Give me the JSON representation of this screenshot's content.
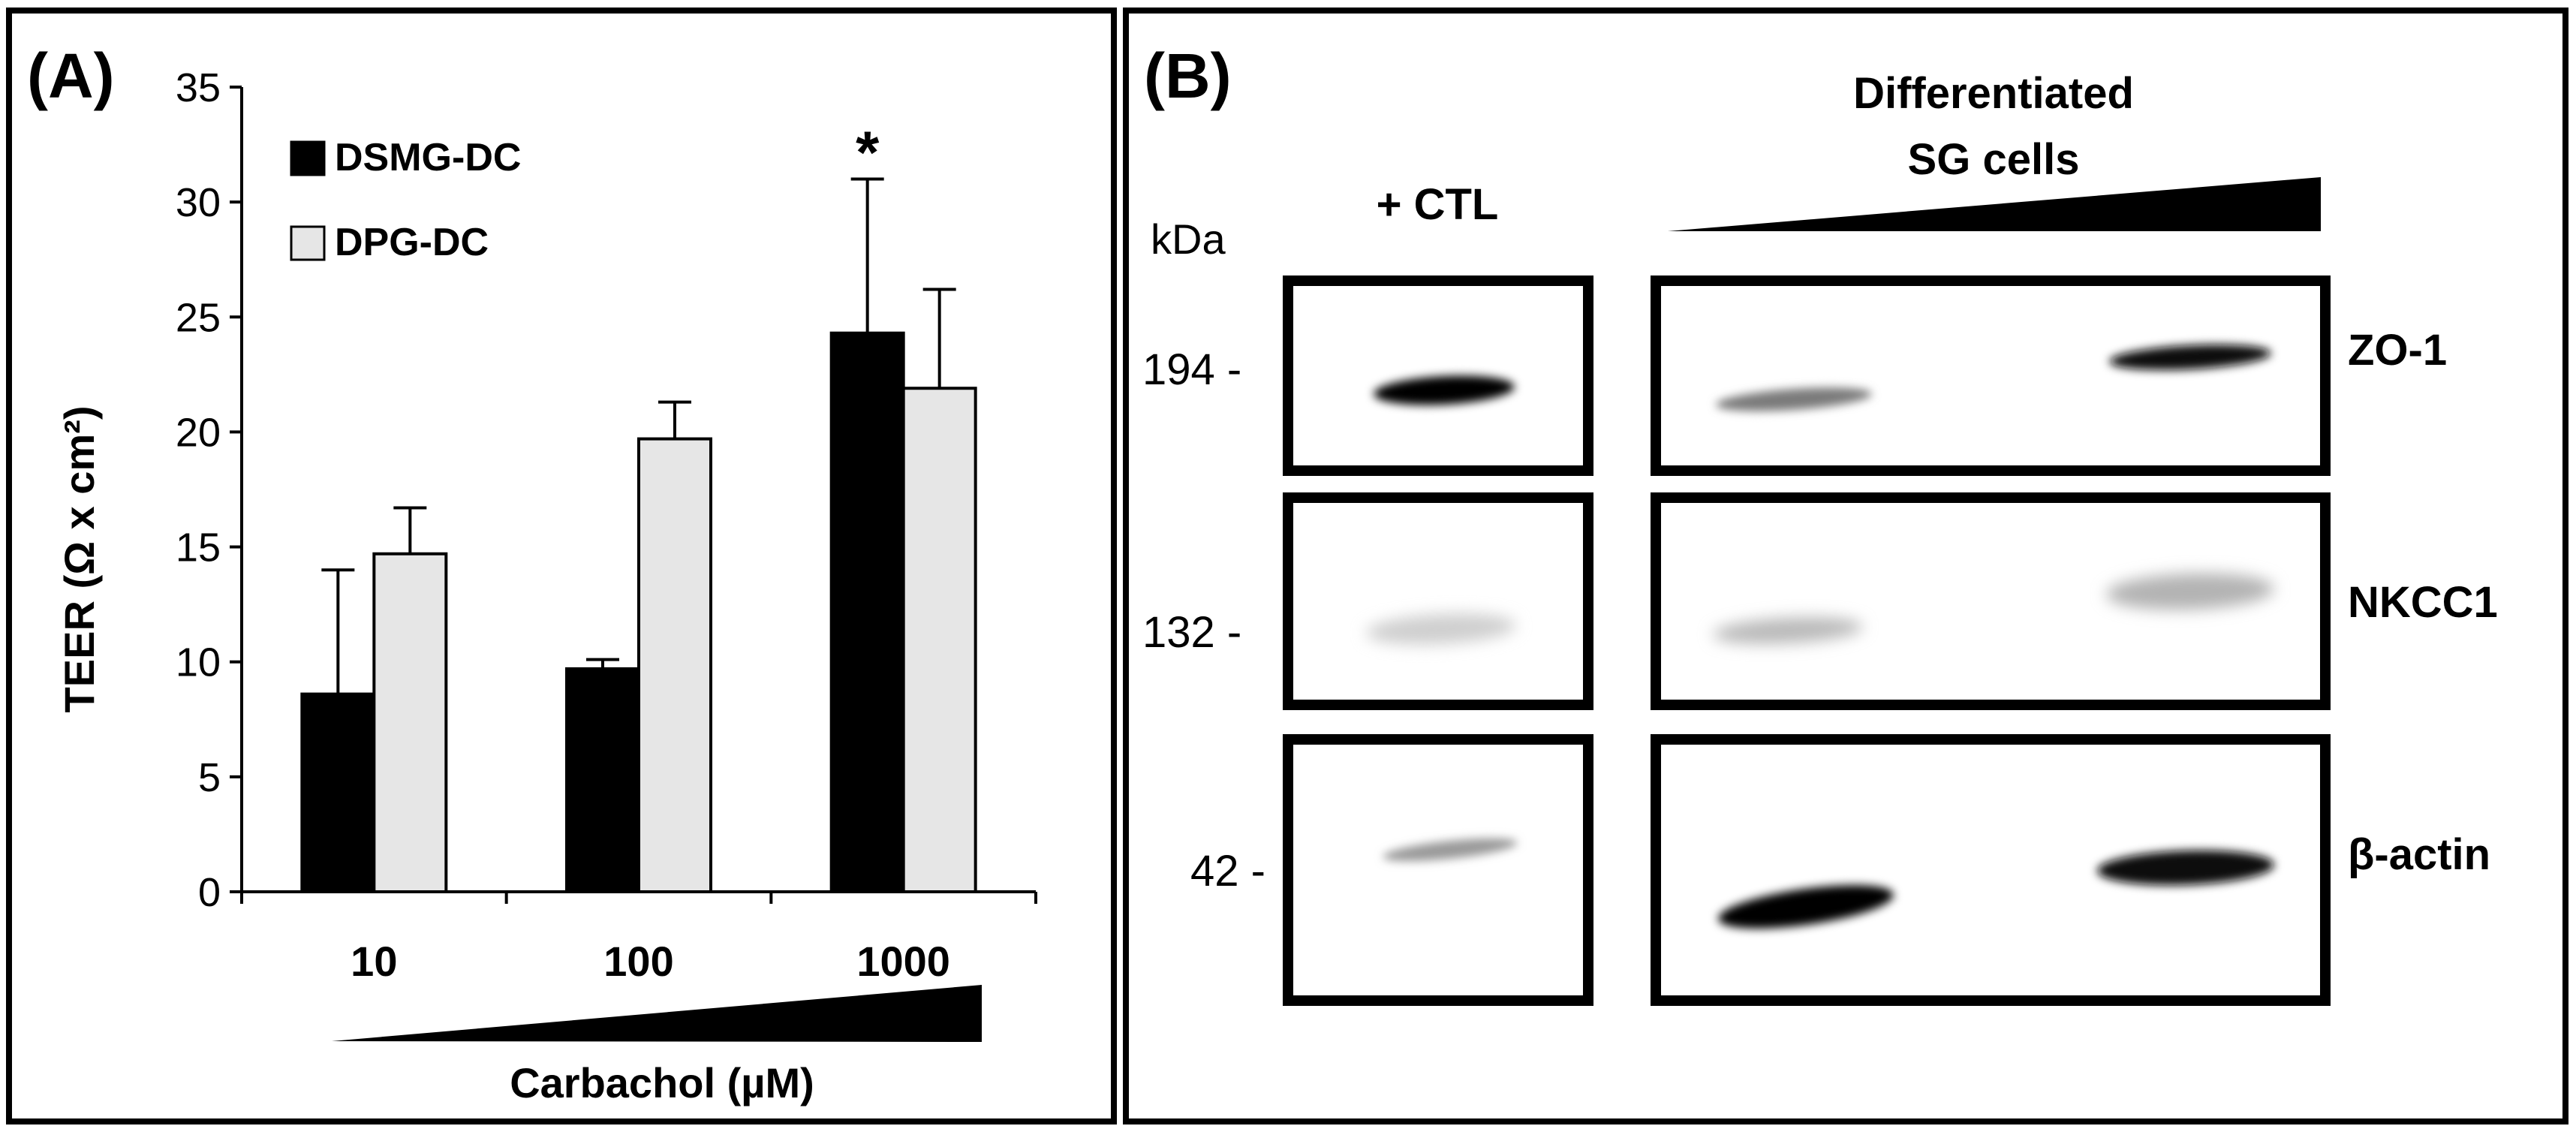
{
  "panel_a": {
    "label": "(A)",
    "legend": [
      "DSMG-DC",
      "DPG-DC"
    ],
    "significance_marker": "*",
    "gradient_label": "Carbachol (µM)"
  },
  "panel_b": {
    "label": "(B)",
    "kda_label": "kDa",
    "ctl_label": "+ CTL",
    "group_label_line1": "Differentiated",
    "group_label_line2": "SG cells",
    "markers": [
      "194 -",
      "132 -",
      "42 -"
    ],
    "proteins": [
      "ZO-1",
      "NKCC1",
      "β-actin"
    ]
  },
  "chart_data": {
    "type": "bar",
    "title": "",
    "xlabel": "Carbachol (µM)",
    "ylabel": "TEER (Ω x cm²)",
    "categories": [
      "10",
      "100",
      "1000"
    ],
    "ylim": [
      0,
      35
    ],
    "yticks": [
      "0",
      "5",
      "10",
      "15",
      "20",
      "25",
      "30",
      "35"
    ],
    "series": [
      {
        "name": "DSMG-DC",
        "color": "#000000",
        "values": [
          8.6,
          9.7,
          24.3
        ],
        "errors": [
          5.4,
          0.4,
          6.7
        ]
      },
      {
        "name": "DPG-DC",
        "color": "#e6e6e6",
        "values": [
          14.7,
          19.7,
          21.9
        ],
        "errors": [
          2.0,
          1.6,
          4.3
        ]
      }
    ],
    "annotations": [
      {
        "category": "1000",
        "series": "DSMG-DC",
        "text": "*"
      }
    ]
  }
}
